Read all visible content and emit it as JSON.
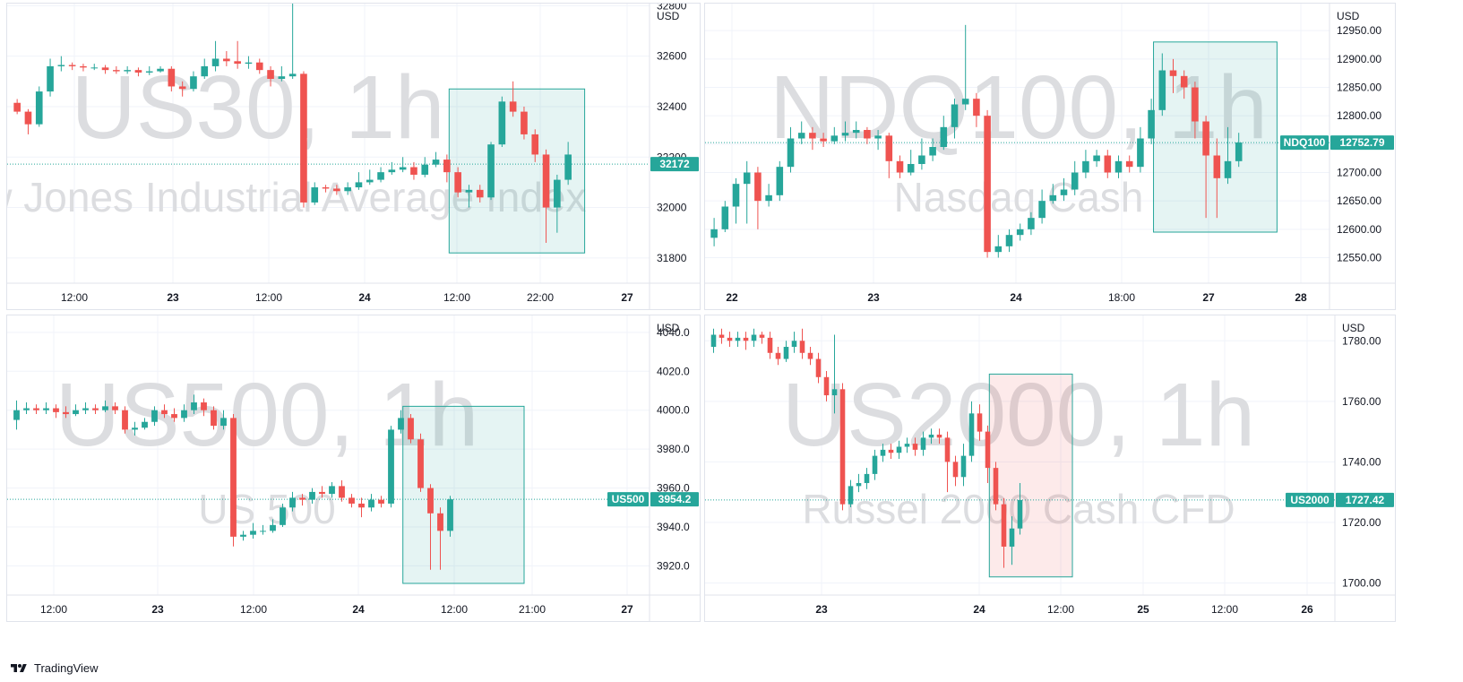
{
  "colors": {
    "up": "#26a69a",
    "down": "#ef5350",
    "grid": "#f0f3fa",
    "box_green": "#26a69a",
    "box_red": "#ef9a9a"
  },
  "footer": {
    "brand": "TradingView"
  },
  "chart_data": [
    {
      "type": "candlestick",
      "watermark_symbol": "US30, 1h",
      "watermark_name": "Dow Jones Industrial Average Index",
      "unit": "USD",
      "ylim": [
        31700,
        32780
      ],
      "yticks": [
        31800,
        32000,
        32200,
        32400,
        32600,
        32800
      ],
      "xticks": [
        "12:00",
        "23",
        "12:00",
        "24",
        "12:00",
        "22:00",
        "27"
      ],
      "last_price": "32172",
      "last_value": 32172,
      "box": {
        "start_index": 40,
        "end_index": 52,
        "low": 31820,
        "high": 32470,
        "style": "green"
      },
      "candles": [
        [
          32415,
          32380,
          32430,
          32370
        ],
        [
          32380,
          32330,
          32390,
          32290
        ],
        [
          32330,
          32460,
          32480,
          32320
        ],
        [
          32460,
          32560,
          32590,
          32440
        ],
        [
          32560,
          32565,
          32600,
          32540
        ],
        [
          32565,
          32560,
          32575,
          32545
        ],
        [
          32560,
          32555,
          32570,
          32540
        ],
        [
          32555,
          32555,
          32570,
          32545
        ],
        [
          32555,
          32545,
          32565,
          32530
        ],
        [
          32545,
          32540,
          32560,
          32530
        ],
        [
          32540,
          32545,
          32560,
          32530
        ],
        [
          32545,
          32535,
          32555,
          32520
        ],
        [
          32535,
          32540,
          32560,
          32525
        ],
        [
          32540,
          32550,
          32560,
          32535
        ],
        [
          32550,
          32480,
          32560,
          32460
        ],
        [
          32480,
          32470,
          32500,
          32440
        ],
        [
          32470,
          32520,
          32540,
          32460
        ],
        [
          32520,
          32560,
          32590,
          32510
        ],
        [
          32560,
          32590,
          32660,
          32540
        ],
        [
          32590,
          32580,
          32620,
          32560
        ],
        [
          32580,
          32570,
          32660,
          32550
        ],
        [
          32570,
          32575,
          32600,
          32550
        ],
        [
          32575,
          32545,
          32590,
          32530
        ],
        [
          32545,
          32510,
          32560,
          32480
        ],
        [
          32510,
          32520,
          32560,
          32500
        ],
        [
          32520,
          32530,
          32880,
          32510
        ],
        [
          32530,
          32020,
          32540,
          32000
        ],
        [
          32020,
          32080,
          32100,
          32010
        ],
        [
          32080,
          32075,
          32090,
          32060
        ],
        [
          32075,
          32065,
          32090,
          32050
        ],
        [
          32065,
          32080,
          32100,
          32050
        ],
        [
          32080,
          32100,
          32140,
          32070
        ],
        [
          32100,
          32110,
          32150,
          32090
        ],
        [
          32110,
          32140,
          32160,
          32100
        ],
        [
          32140,
          32150,
          32180,
          32130
        ],
        [
          32150,
          32160,
          32200,
          32140
        ],
        [
          32160,
          32130,
          32180,
          32110
        ],
        [
          32130,
          32170,
          32200,
          32120
        ],
        [
          32170,
          32190,
          32220,
          32160
        ],
        [
          32190,
          32140,
          32210,
          32100
        ],
        [
          32140,
          32060,
          32160,
          32040
        ],
        [
          32060,
          32070,
          32090,
          32000
        ],
        [
          32070,
          32040,
          32090,
          32020
        ],
        [
          32040,
          32250,
          32260,
          32030
        ],
        [
          32250,
          32420,
          32440,
          32240
        ],
        [
          32420,
          32380,
          32500,
          32360
        ],
        [
          32380,
          32290,
          32400,
          32270
        ],
        [
          32290,
          32210,
          32310,
          32180
        ],
        [
          32210,
          32000,
          32230,
          31860
        ],
        [
          32000,
          32110,
          32130,
          31900
        ],
        [
          32110,
          32210,
          32260,
          32090
        ]
      ]
    },
    {
      "type": "candlestick",
      "watermark_symbol": "NDQ100, 1h",
      "watermark_name": "Nasdaq Cash",
      "unit": "USD",
      "ylim": [
        12505,
        12985
      ],
      "yticks": [
        12550,
        12600,
        12650,
        12700,
        12750,
        12800,
        12850,
        12900,
        12950
      ],
      "xticks": [
        "22",
        "23",
        "24",
        "18:00",
        "27",
        "28"
      ],
      "last_price": "12752.79",
      "last_value": 12752.79,
      "price_label": "NDQ100",
      "box": {
        "start_index": 41,
        "end_index": 52,
        "low": 12595,
        "high": 12930,
        "style": "green"
      },
      "candles": [
        [
          12585,
          12600,
          12620,
          12570
        ],
        [
          12600,
          12640,
          12650,
          12595
        ],
        [
          12640,
          12680,
          12690,
          12610
        ],
        [
          12680,
          12700,
          12720,
          12610
        ],
        [
          12700,
          12650,
          12710,
          12600
        ],
        [
          12650,
          12660,
          12680,
          12640
        ],
        [
          12660,
          12710,
          12720,
          12650
        ],
        [
          12710,
          12760,
          12780,
          12700
        ],
        [
          12760,
          12770,
          12790,
          12750
        ],
        [
          12770,
          12760,
          12780,
          12740
        ],
        [
          12760,
          12755,
          12770,
          12745
        ],
        [
          12755,
          12765,
          12780,
          12750
        ],
        [
          12765,
          12770,
          12790,
          12755
        ],
        [
          12770,
          12775,
          12790,
          12760
        ],
        [
          12775,
          12760,
          12780,
          12750
        ],
        [
          12760,
          12765,
          12775,
          12740
        ],
        [
          12765,
          12720,
          12770,
          12690
        ],
        [
          12720,
          12700,
          12730,
          12690
        ],
        [
          12700,
          12715,
          12740,
          12695
        ],
        [
          12715,
          12730,
          12760,
          12705
        ],
        [
          12730,
          12745,
          12760,
          12720
        ],
        [
          12745,
          12780,
          12800,
          12740
        ],
        [
          12780,
          12820,
          12830,
          12760
        ],
        [
          12820,
          12830,
          12960,
          12810
        ],
        [
          12830,
          12800,
          12840,
          12780
        ],
        [
          12800,
          12560,
          12810,
          12550
        ],
        [
          12560,
          12570,
          12590,
          12550
        ],
        [
          12570,
          12590,
          12600,
          12560
        ],
        [
          12590,
          12600,
          12610,
          12580
        ],
        [
          12600,
          12620,
          12630,
          12590
        ],
        [
          12620,
          12650,
          12670,
          12610
        ],
        [
          12650,
          12660,
          12680,
          12645
        ],
        [
          12660,
          12670,
          12690,
          12650
        ],
        [
          12670,
          12700,
          12720,
          12660
        ],
        [
          12700,
          12720,
          12740,
          12690
        ],
        [
          12720,
          12730,
          12740,
          12710
        ],
        [
          12730,
          12700,
          12740,
          12690
        ],
        [
          12700,
          12720,
          12730,
          12690
        ],
        [
          12720,
          12710,
          12730,
          12700
        ],
        [
          12710,
          12760,
          12780,
          12700
        ],
        [
          12760,
          12810,
          12830,
          12750
        ],
        [
          12810,
          12880,
          12910,
          12800
        ],
        [
          12880,
          12870,
          12900,
          12840
        ],
        [
          12870,
          12850,
          12880,
          12830
        ],
        [
          12850,
          12790,
          12860,
          12760
        ],
        [
          12790,
          12730,
          12800,
          12620
        ],
        [
          12730,
          12690,
          12760,
          12620
        ],
        [
          12690,
          12720,
          12780,
          12680
        ],
        [
          12720,
          12752.79,
          12770,
          12710
        ]
      ]
    },
    {
      "type": "candlestick",
      "watermark_symbol": "US500, 1h",
      "watermark_name": "US 500",
      "unit": "USD",
      "ylim": [
        3905,
        4045
      ],
      "yticks": [
        3920,
        3940,
        3960,
        3980,
        4000,
        4020,
        4040
      ],
      "xticks": [
        "12:00",
        "23",
        "12:00",
        "24",
        "12:00",
        "21:00",
        "27"
      ],
      "last_price": "3954.2",
      "last_value": 3954.2,
      "price_label": "US500",
      "box": {
        "start_index": 40,
        "end_index": 52,
        "low": 3911,
        "high": 4002,
        "style": "green"
      },
      "candles": [
        [
          3995,
          4000,
          4005,
          3990
        ],
        [
          4000,
          4001,
          4004,
          3998
        ],
        [
          4001,
          4000,
          4003,
          3998
        ],
        [
          4000,
          4001,
          4004,
          3998
        ],
        [
          4001,
          3999,
          4003,
          3996
        ],
        [
          3999,
          3998,
          4002,
          3996
        ],
        [
          3998,
          4000,
          4003,
          3997
        ],
        [
          4000,
          4001,
          4004,
          3998
        ],
        [
          4001,
          4000,
          4003,
          3998
        ],
        [
          4000,
          4002,
          4005,
          3999
        ],
        [
          4002,
          4000,
          4004,
          3998
        ],
        [
          4000,
          3990,
          4002,
          3988
        ],
        [
          3990,
          3991,
          3994,
          3987
        ],
        [
          3991,
          3994,
          3996,
          3990
        ],
        [
          3994,
          4000,
          4002,
          3992
        ],
        [
          4000,
          3998,
          4003,
          3996
        ],
        [
          3998,
          3996,
          4001,
          3994
        ],
        [
          3996,
          4000,
          4003,
          3994
        ],
        [
          4000,
          4004,
          4008,
          3998
        ],
        [
          4004,
          4000,
          4006,
          3997
        ],
        [
          4000,
          3992,
          4002,
          3990
        ],
        [
          3992,
          3996,
          4000,
          3990
        ],
        [
          3996,
          3935,
          3998,
          3930
        ],
        [
          3935,
          3936,
          3938,
          3933
        ],
        [
          3936,
          3938,
          3942,
          3934
        ],
        [
          3938,
          3938,
          3941,
          3936
        ],
        [
          3938,
          3941,
          3944,
          3937
        ],
        [
          3941,
          3950,
          3952,
          3940
        ],
        [
          3950,
          3955,
          3958,
          3948
        ],
        [
          3955,
          3954,
          3957,
          3951
        ],
        [
          3954,
          3958,
          3960,
          3952
        ],
        [
          3958,
          3957,
          3961,
          3955
        ],
        [
          3957,
          3961,
          3963,
          3955
        ],
        [
          3961,
          3955,
          3964,
          3953
        ],
        [
          3955,
          3952,
          3957,
          3950
        ],
        [
          3952,
          3950,
          3955,
          3945
        ],
        [
          3950,
          3954,
          3957,
          3948
        ],
        [
          3954,
          3952,
          3956,
          3950
        ],
        [
          3952,
          3990,
          3992,
          3950
        ],
        [
          3990,
          3996,
          4000,
          3988
        ],
        [
          3996,
          3985,
          3998,
          3983
        ],
        [
          3985,
          3960,
          3988,
          3958
        ],
        [
          3960,
          3947,
          3962,
          3918
        ],
        [
          3947,
          3938,
          3950,
          3918
        ],
        [
          3938,
          3954.2,
          3956,
          3935
        ]
      ]
    },
    {
      "type": "candlestick",
      "watermark_symbol": "US2000, 1h",
      "watermark_name": "Russel 2000 Cash CFD",
      "unit": "USD",
      "ylim": [
        1696,
        1786
      ],
      "yticks": [
        1700,
        1720,
        1740,
        1760,
        1780
      ],
      "xticks": [
        "23",
        "24",
        "12:00",
        "25",
        "12:00",
        "26"
      ],
      "last_price": "1727.42",
      "last_value": 1727.42,
      "price_label": "US2000",
      "box": {
        "start_index": 35,
        "end_index": 45,
        "low": 1702,
        "high": 1769,
        "style": "red"
      },
      "candles": [
        [
          1778,
          1782,
          1784,
          1776
        ],
        [
          1782,
          1781,
          1784,
          1779
        ],
        [
          1781,
          1780,
          1783,
          1778
        ],
        [
          1780,
          1781,
          1783,
          1778
        ],
        [
          1781,
          1780,
          1783,
          1777
        ],
        [
          1780,
          1782,
          1784,
          1778
        ],
        [
          1782,
          1781,
          1783,
          1779
        ],
        [
          1781,
          1776,
          1783,
          1774
        ],
        [
          1776,
          1774,
          1778,
          1772
        ],
        [
          1774,
          1778,
          1780,
          1773
        ],
        [
          1778,
          1780,
          1783,
          1776
        ],
        [
          1780,
          1776,
          1784,
          1774
        ],
        [
          1776,
          1774,
          1778,
          1772
        ],
        [
          1774,
          1768,
          1776,
          1766
        ],
        [
          1768,
          1762,
          1770,
          1760
        ],
        [
          1762,
          1764,
          1782,
          1756
        ],
        [
          1764,
          1726,
          1766,
          1724
        ],
        [
          1726,
          1732,
          1734,
          1725
        ],
        [
          1732,
          1733,
          1736,
          1730
        ],
        [
          1733,
          1736,
          1738,
          1731
        ],
        [
          1736,
          1742,
          1744,
          1734
        ],
        [
          1742,
          1744,
          1746,
          1740
        ],
        [
          1744,
          1743,
          1746,
          1741
        ],
        [
          1743,
          1745,
          1747,
          1741
        ],
        [
          1745,
          1746,
          1748,
          1743
        ],
        [
          1746,
          1744,
          1748,
          1742
        ],
        [
          1744,
          1748,
          1750,
          1742
        ],
        [
          1748,
          1749,
          1751,
          1746
        ],
        [
          1749,
          1748,
          1751,
          1746
        ],
        [
          1748,
          1740,
          1750,
          1730
        ],
        [
          1740,
          1735,
          1742,
          1732
        ],
        [
          1735,
          1742,
          1746,
          1732
        ],
        [
          1742,
          1756,
          1760,
          1740
        ],
        [
          1756,
          1750,
          1759,
          1747
        ],
        [
          1750,
          1738,
          1752,
          1733
        ],
        [
          1738,
          1726,
          1740,
          1724
        ],
        [
          1726,
          1712,
          1728,
          1705
        ],
        [
          1712,
          1718,
          1722,
          1706
        ],
        [
          1718,
          1727.42,
          1733,
          1716
        ]
      ]
    }
  ]
}
